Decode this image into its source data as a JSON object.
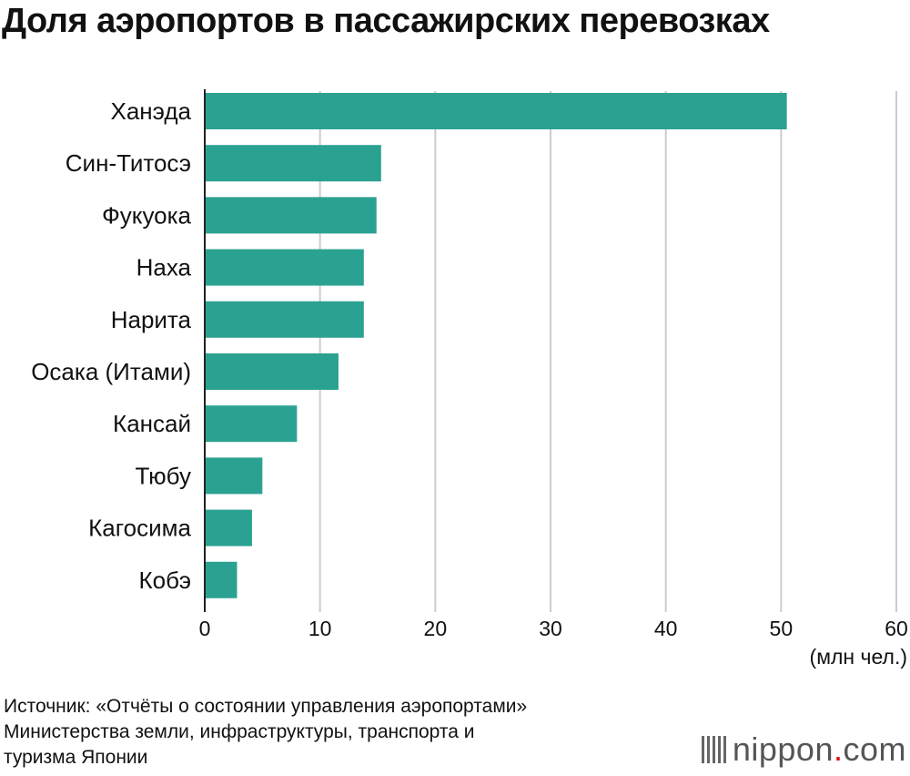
{
  "chart_data": {
    "type": "bar",
    "orientation": "horizontal",
    "title": "Доля аэропортов в пассажирских перевозках",
    "categories": [
      "Ханэда",
      "Син-Титосэ",
      "Фукуока",
      "Наха",
      "Нарита",
      "Осака (Итами)",
      "Кансай",
      "Тюбу",
      "Кагосима",
      "Кобэ"
    ],
    "values": [
      50.5,
      15.3,
      14.9,
      13.8,
      13.8,
      11.6,
      8.0,
      5.0,
      4.1,
      2.8
    ],
    "xlim": [
      0,
      60
    ],
    "xticks": [
      0,
      10,
      20,
      30,
      40,
      50,
      60
    ],
    "xunit": "(млн чел.)",
    "grid": true,
    "bar_color": "#2ba192",
    "grid_color": "#cccccc"
  },
  "source": {
    "lines": [
      "Источник: «Отчёты о состоянии управления аэропортами»",
      "Министерства земли, инфраструктуры, транспорта и",
      "туризма Японии"
    ]
  },
  "logo": {
    "main": "nippon",
    "dot": ".",
    "suffix": "com"
  }
}
